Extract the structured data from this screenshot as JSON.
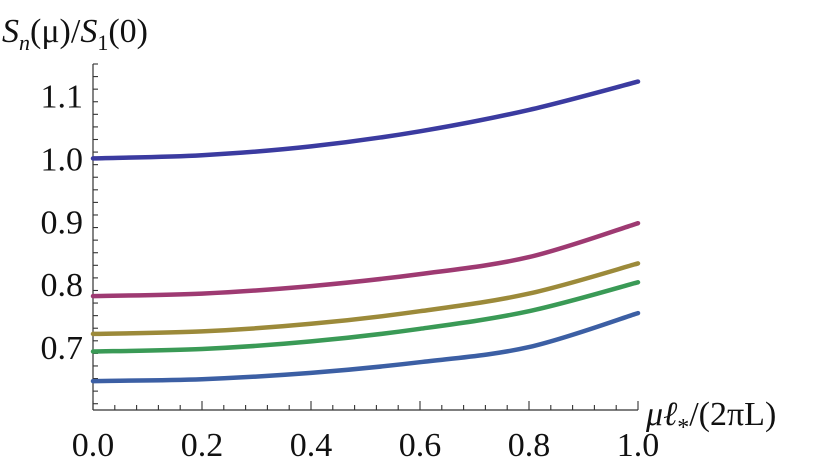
{
  "chart_data": {
    "type": "line",
    "ylabel_parts": {
      "S1": "S",
      "n": "n",
      "mid": "(μ)/",
      "S2": "S",
      "one": "1",
      "tail": "(0)"
    },
    "xlabel_parts": {
      "mu": "μℓ",
      "star": "*",
      "tail": "/(2πL)"
    },
    "xlim": [
      0,
      1
    ],
    "ylim": [
      0.6,
      1.15
    ],
    "xticks": [
      "0.0",
      "0.2",
      "0.4",
      "0.6",
      "0.8",
      "1.0"
    ],
    "yticks": [
      "0.7",
      "0.8",
      "0.9",
      "1.0",
      "1.1"
    ],
    "grid": false,
    "series": [
      {
        "color": "#3b3ba0",
        "x": [
          0,
          0.2,
          0.4,
          0.6,
          0.8,
          1.0
        ],
        "y": [
          1.0,
          1.005,
          1.019,
          1.043,
          1.077,
          1.122
        ]
      },
      {
        "color": "#9e3a72",
        "x": [
          0,
          0.2,
          0.4,
          0.6,
          0.8,
          1.0
        ],
        "y": [
          0.781,
          0.785,
          0.797,
          0.816,
          0.843,
          0.897
        ]
      },
      {
        "color": "#9c8a3a",
        "x": [
          0,
          0.2,
          0.4,
          0.6,
          0.8,
          1.0
        ],
        "y": [
          0.721,
          0.725,
          0.737,
          0.757,
          0.785,
          0.833
        ]
      },
      {
        "color": "#3a9a56",
        "x": [
          0,
          0.2,
          0.4,
          0.6,
          0.8,
          1.0
        ],
        "y": [
          0.693,
          0.697,
          0.709,
          0.729,
          0.757,
          0.803
        ]
      },
      {
        "color": "#3c5fa4",
        "x": [
          0,
          0.2,
          0.4,
          0.6,
          0.8,
          1.0
        ],
        "y": [
          0.646,
          0.649,
          0.659,
          0.676,
          0.7,
          0.754
        ]
      }
    ]
  }
}
